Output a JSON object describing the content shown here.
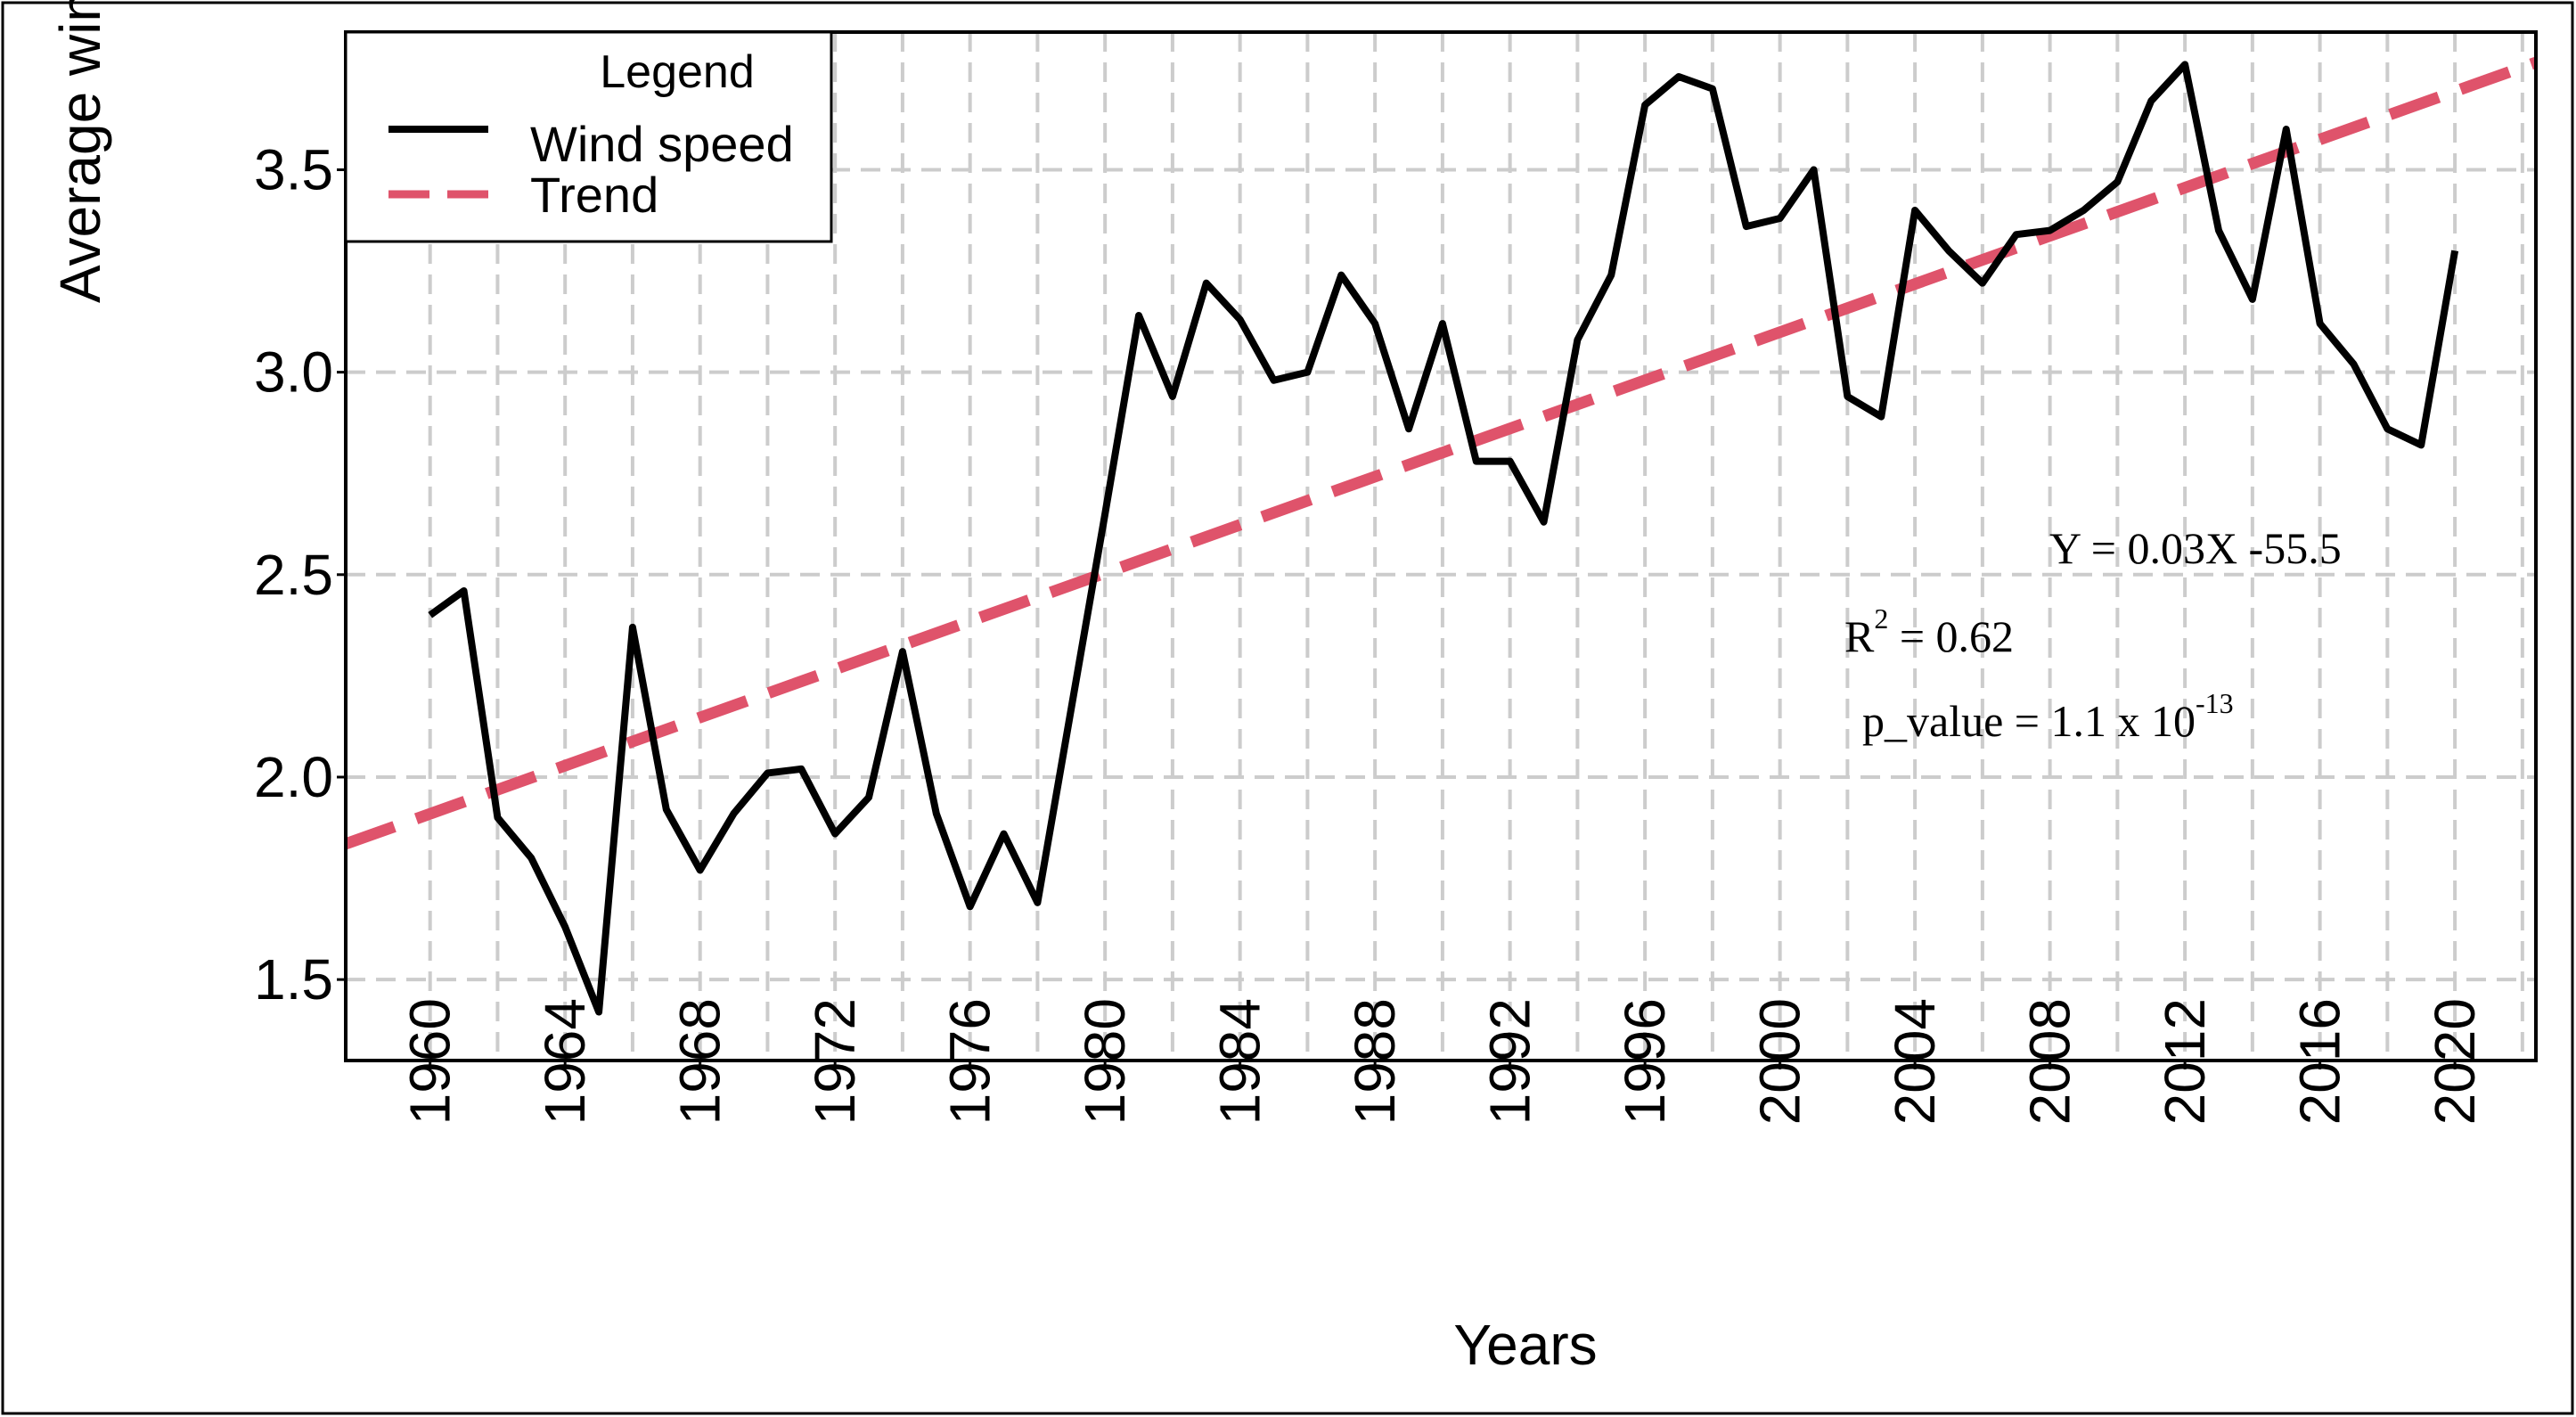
{
  "chart_data": {
    "type": "line",
    "title": "",
    "xlabel": "Years",
    "ylabel": "Average wind spe",
    "xlim": [
      1957.5,
      2022.4
    ],
    "ylim": [
      1.3,
      3.84
    ],
    "x_ticks": [
      1960,
      1962,
      1964,
      1966,
      1968,
      1970,
      1972,
      1974,
      1976,
      1978,
      1980,
      1982,
      1984,
      1986,
      1988,
      1990,
      1992,
      1994,
      1996,
      1998,
      2000,
      2002,
      2004,
      2006,
      2008,
      2010,
      2012,
      2014,
      2016,
      2018,
      2020,
      2022
    ],
    "x_tick_labels": [
      "1960",
      "1964",
      "1968",
      "1972",
      "1976",
      "1980",
      "1984",
      "1988",
      "1992",
      "1996",
      "2000",
      "2004",
      "2008",
      "2012",
      "2016",
      "2020"
    ],
    "y_ticks": [
      1.5,
      2.0,
      2.5,
      3.0,
      3.5
    ],
    "y_tick_labels": [
      "1.5",
      "2.0",
      "2.5",
      "3.0",
      "3.5"
    ],
    "grid": true,
    "legend": {
      "title": "Legend",
      "position": "top-left",
      "entries": [
        "Wind speed",
        "Trend"
      ]
    },
    "series": [
      {
        "name": "Wind speed",
        "color": "#000000",
        "style": "solid",
        "x": [
          1960,
          1961,
          1962,
          1963,
          1964,
          1965,
          1966,
          1967,
          1968,
          1969,
          1970,
          1971,
          1972,
          1973,
          1974,
          1975,
          1976,
          1977,
          1978,
          1979,
          1980,
          1981,
          1982,
          1983,
          1984,
          1985,
          1986,
          1987,
          1988,
          1989,
          1990,
          1991,
          1992,
          1993,
          1994,
          1995,
          1996,
          1997,
          1998,
          1999,
          2000,
          2001,
          2002,
          2003,
          2004,
          2005,
          2006,
          2007,
          2008,
          2009,
          2010,
          2011,
          2012,
          2013,
          2014,
          2015,
          2016,
          2017,
          2018,
          2019,
          2020
        ],
        "y": [
          2.4,
          2.46,
          1.9,
          1.8,
          1.63,
          1.42,
          2.37,
          1.92,
          1.77,
          1.91,
          2.01,
          2.02,
          1.86,
          1.95,
          2.31,
          1.91,
          1.68,
          1.86,
          1.69,
          2.17,
          2.65,
          3.14,
          2.94,
          3.22,
          3.13,
          2.98,
          3.0,
          3.24,
          3.12,
          2.86,
          3.12,
          2.78,
          2.78,
          2.63,
          3.08,
          3.24,
          3.66,
          3.73,
          3.7,
          3.36,
          3.38,
          3.5,
          2.94,
          2.89,
          3.4,
          3.3,
          3.22,
          3.34,
          3.35,
          3.4,
          3.47,
          3.67,
          3.76,
          3.35,
          3.18,
          3.6,
          3.12,
          3.02,
          2.86,
          2.82,
          3.3
        ]
      },
      {
        "name": "Trend",
        "color": "#df536b",
        "style": "dashed",
        "x": [
          1957.5,
          2022.4
        ],
        "y": [
          1.835,
          3.765
        ]
      }
    ],
    "annotations": {
      "equation": "Y = 0.03X -55.5",
      "r2_prefix": "R",
      "r2_sup": "2",
      "r2_value": " = 0.62",
      "p_prefix": "p_value = 1.1 x 10",
      "p_sup": "-13"
    }
  }
}
